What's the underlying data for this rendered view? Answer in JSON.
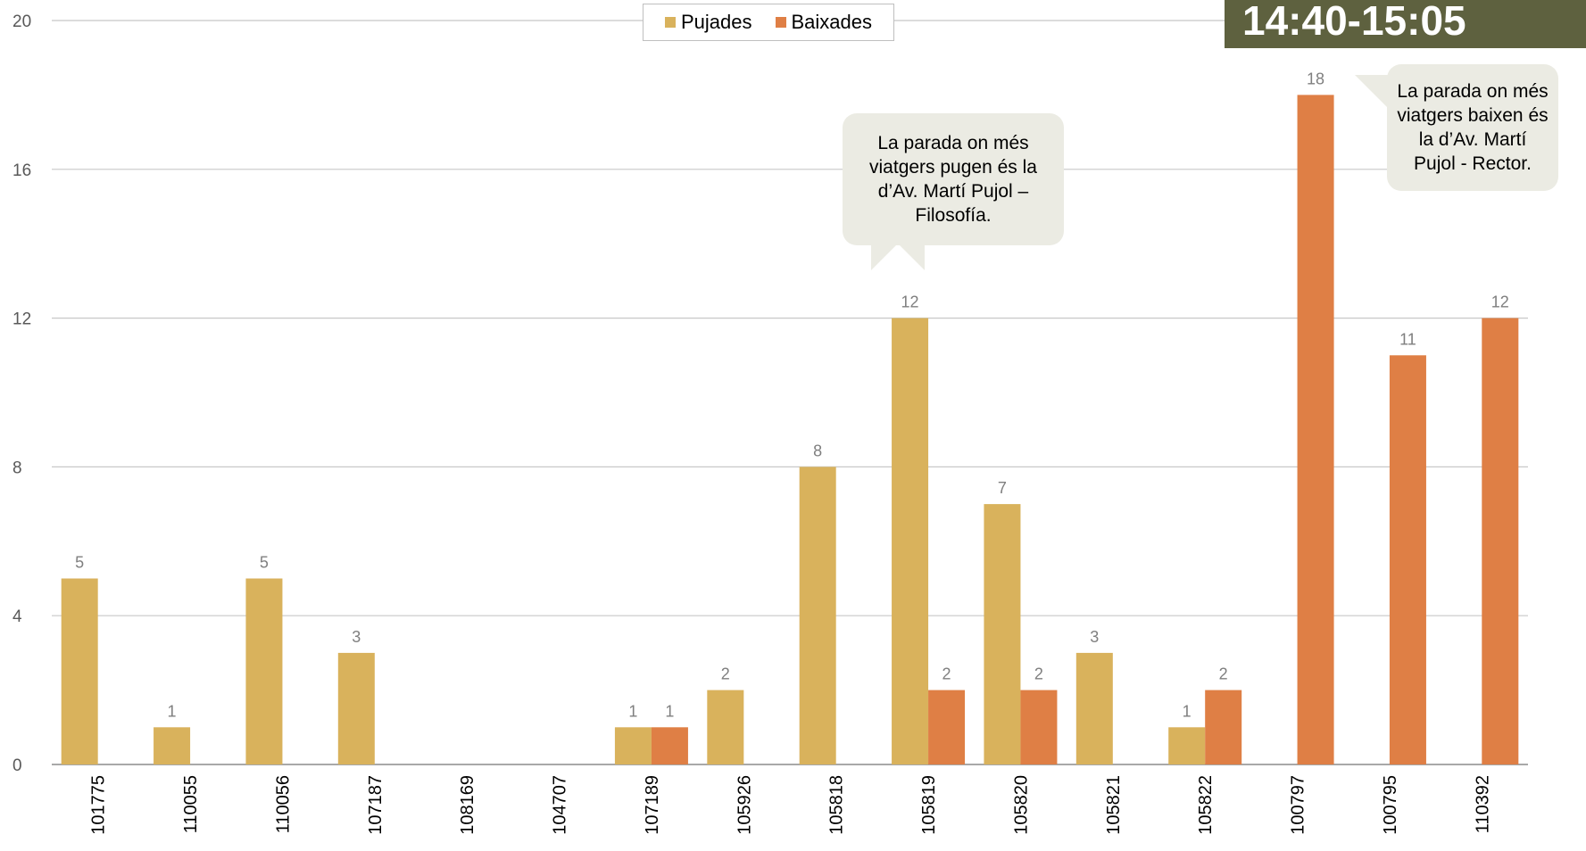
{
  "chart_data": {
    "type": "bar",
    "categories": [
      "101775",
      "110055",
      "110056",
      "107187",
      "108169",
      "104707",
      "107189",
      "105926",
      "105818",
      "105819",
      "105820",
      "105821",
      "105822",
      "100797",
      "100795",
      "110392"
    ],
    "series": [
      {
        "name": "Pujades",
        "color": "#d9b25c",
        "values": [
          5,
          1,
          5,
          3,
          0,
          0,
          1,
          2,
          8,
          12,
          7,
          3,
          1,
          0,
          0,
          0
        ]
      },
      {
        "name": "Baixades",
        "color": "#df7f45",
        "values": [
          0,
          0,
          0,
          0,
          0,
          0,
          1,
          0,
          0,
          2,
          2,
          0,
          2,
          18,
          11,
          12
        ]
      }
    ],
    "yticks": [
      0,
      4,
      8,
      12,
      16,
      20
    ],
    "ylim": [
      0,
      20
    ],
    "grid": true,
    "legend_position": "top-center",
    "title": "",
    "xlabel": "",
    "ylabel": ""
  },
  "legend": {
    "pujades": "Pujades",
    "baixades": "Baixades"
  },
  "time_badge": "14:40-15:05",
  "callouts": {
    "pujades_max": "La parada on més viatgers pugen és la d’Av. Martí Pujol – Filosofía.",
    "baixades_max": "La parada on més viatgers baixen és la d’Av. Martí Pujol - Rector."
  }
}
